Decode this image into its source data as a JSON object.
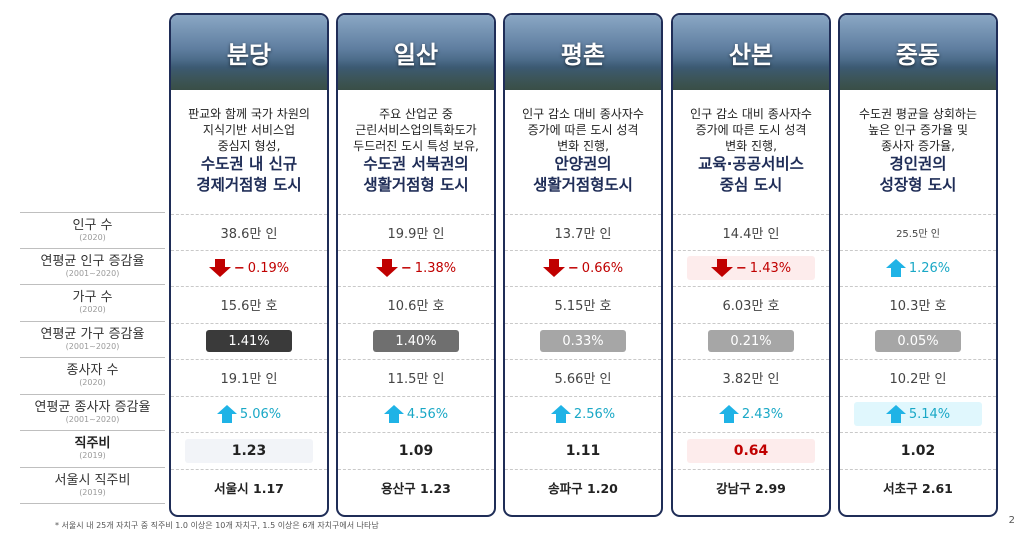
{
  "row_labels": [
    {
      "main": "인구 수",
      "sub": "(2020)"
    },
    {
      "main": "연평균 인구 증감율",
      "sub": "(2001~2020)"
    },
    {
      "main": "가구 수",
      "sub": "(2020)"
    },
    {
      "main": "연평균 가구 증감율",
      "sub": "(2001~2020)"
    },
    {
      "main": "종사자 수",
      "sub": "(2020)"
    },
    {
      "main": "연평균 종사자 증감율",
      "sub": "(2001~2020)"
    },
    {
      "main": "직주비",
      "sub": "(2019)"
    },
    {
      "main": "서울시 직주비",
      "sub": "(2019)"
    }
  ],
  "cities": [
    {
      "name": "분당",
      "desc_lines": [
        "판교와 함께 국가 차원의",
        "지식기반 서비스업",
        "중심지 형성,"
      ],
      "desc_bold": [
        "수도권 내 신규",
        "경제거점형 도시"
      ],
      "population": "38.6만 인",
      "pop_rate": "0.19%",
      "pop_dir": "down",
      "households": "15.6만 호",
      "hh_rate": "1.41%",
      "hh_color": "#3a3a3a",
      "workers": "19.1만 인",
      "workers_rate": "5.06%",
      "ratio": "1.23",
      "seoul_ratio": "서울시 1.17"
    },
    {
      "name": "일산",
      "desc_lines": [
        "주요 산업군 중",
        "근린서비스업의특화도가",
        "두드러진 도시 특성 보유,"
      ],
      "desc_bold": [
        "수도권 서북권의",
        "생활거점형 도시"
      ],
      "population": "19.9만 인",
      "pop_rate": "1.38%",
      "pop_dir": "down",
      "households": "10.6만 호",
      "hh_rate": "1.40%",
      "hh_color": "#6f6f6f",
      "workers": "11.5만 인",
      "workers_rate": "4.56%",
      "ratio": "1.09",
      "seoul_ratio": "용산구 1.23"
    },
    {
      "name": "평촌",
      "desc_lines": [
        "인구 감소 대비 종사자수",
        "증가에 따른 도시 성격",
        "변화 진행,"
      ],
      "desc_bold": [
        "안양권의",
        "생활거점형도시"
      ],
      "population": "13.7만 인",
      "pop_rate": "0.66%",
      "pop_dir": "down",
      "households": "5.15만 호",
      "hh_rate": "0.33%",
      "hh_color": "#a6a6a6",
      "workers": "5.66만 인",
      "workers_rate": "2.56%",
      "ratio": "1.11",
      "seoul_ratio": "송파구 1.20"
    },
    {
      "name": "산본",
      "desc_lines": [
        "인구 감소 대비 종사자수",
        "증가에 따른 도시 성격",
        "변화 진행,"
      ],
      "desc_bold": [
        "교육·공공서비스",
        "중심 도시"
      ],
      "population": "14.4만 인",
      "pop_rate": "1.43%",
      "pop_dir": "down",
      "households": "6.03만 호",
      "hh_rate": "0.21%",
      "hh_color": "#a6a6a6",
      "workers": "3.82만 인",
      "workers_rate": "2.43%",
      "ratio": "0.64",
      "seoul_ratio": "강남구 2.99"
    },
    {
      "name": "중동",
      "desc_lines": [
        "수도권 평균을 상회하는",
        "높은 인구 증가율 및",
        "종사자 증가율,"
      ],
      "desc_bold": [
        "경인권의",
        "성장형 도시"
      ],
      "population": "25.5만 인",
      "pop_rate": "1.26%",
      "pop_dir": "up",
      "households": "10.3만 호",
      "hh_rate": "0.05%",
      "hh_color": "#a6a6a6",
      "workers": "10.2만 인",
      "workers_rate": "5.14%",
      "ratio": "1.02",
      "seoul_ratio": "서초구 2.61"
    }
  ],
  "footnote": "* 서울시 내 25개 자치구 중 직주비 1.0 이상은 10개 자치구, 1.5 이상은 6개 자치구에서 나타남",
  "page_number": "2"
}
